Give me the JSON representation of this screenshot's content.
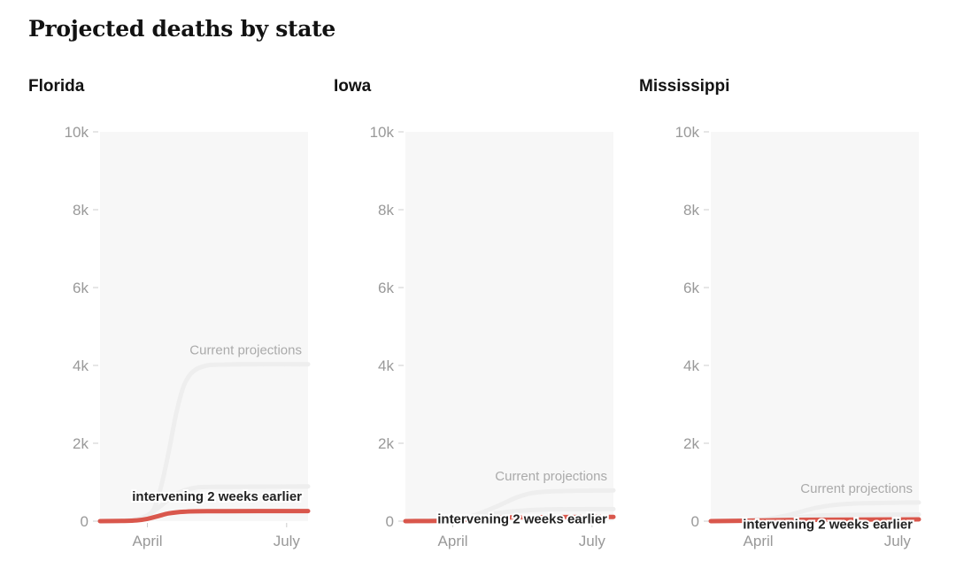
{
  "title": "Projected deaths by state",
  "colors": {
    "intervention": "#d9574c",
    "current": "#eeeeee",
    "plot_bg": "#f7f7f7",
    "tick_text": "#999999"
  },
  "chart_data": [
    {
      "type": "line",
      "title": "Florida",
      "ylim": [
        0,
        10000
      ],
      "yticks": [
        0,
        2000,
        4000,
        6000,
        8000,
        10000
      ],
      "ytick_labels": [
        "0",
        "2k",
        "4k",
        "6k",
        "8k",
        "10k"
      ],
      "xlim": [
        "2020-03-01",
        "2020-07-15"
      ],
      "xticks": [
        "2020-04-01",
        "2020-07-01"
      ],
      "xtick_labels": [
        "April",
        "July"
      ],
      "series": [
        {
          "name": "Current projections",
          "x": [
            "2020-03-01",
            "2020-03-10",
            "2020-03-20",
            "2020-03-30",
            "2020-04-05",
            "2020-04-10",
            "2020-04-15",
            "2020-04-20",
            "2020-04-25",
            "2020-05-01",
            "2020-05-10",
            "2020-05-20",
            "2020-06-01",
            "2020-07-15"
          ],
          "y": [
            0,
            5,
            20,
            100,
            300,
            900,
            1800,
            2800,
            3500,
            3850,
            4000,
            4020,
            4030,
            4030
          ]
        },
        {
          "x": [
            "2020-03-01",
            "2020-03-15",
            "2020-03-25",
            "2020-04-01",
            "2020-04-10",
            "2020-04-20",
            "2020-05-01",
            "2020-05-15",
            "2020-07-15"
          ],
          "y": [
            0,
            10,
            50,
            150,
            400,
            700,
            850,
            880,
            890
          ]
        },
        {
          "name": "intervening 2 weeks earlier",
          "x": [
            "2020-03-01",
            "2020-03-15",
            "2020-03-25",
            "2020-04-01",
            "2020-04-08",
            "2020-04-15",
            "2020-04-25",
            "2020-05-10",
            "2020-07-15"
          ],
          "y": [
            0,
            5,
            20,
            60,
            130,
            200,
            240,
            255,
            260
          ]
        }
      ]
    },
    {
      "type": "line",
      "title": "Iowa",
      "ylim": [
        0,
        10000
      ],
      "yticks": [
        0,
        2000,
        4000,
        6000,
        8000,
        10000
      ],
      "ytick_labels": [
        "0",
        "2k",
        "4k",
        "6k",
        "8k",
        "10k"
      ],
      "xlim": [
        "2020-03-01",
        "2020-07-15"
      ],
      "xticks": [
        "2020-04-01",
        "2020-07-01"
      ],
      "xtick_labels": [
        "April",
        "July"
      ],
      "series": [
        {
          "name": "Current projections",
          "x": [
            "2020-03-01",
            "2020-04-01",
            "2020-04-15",
            "2020-05-01",
            "2020-05-15",
            "2020-06-01",
            "2020-07-15"
          ],
          "y": [
            0,
            40,
            150,
            400,
            640,
            760,
            790
          ]
        },
        {
          "x": [
            "2020-03-01",
            "2020-04-01",
            "2020-04-20",
            "2020-05-10",
            "2020-06-01",
            "2020-07-15"
          ],
          "y": [
            0,
            30,
            150,
            250,
            300,
            310
          ]
        },
        {
          "name": "intervening 2 weeks earlier",
          "x": [
            "2020-03-01",
            "2020-03-25",
            "2020-04-10",
            "2020-04-25",
            "2020-05-15",
            "2020-07-15"
          ],
          "y": [
            0,
            10,
            40,
            80,
            100,
            110
          ]
        }
      ]
    },
    {
      "type": "line",
      "title": "Mississippi",
      "ylim": [
        0,
        10000
      ],
      "yticks": [
        0,
        2000,
        4000,
        6000,
        8000,
        10000
      ],
      "ytick_labels": [
        "0",
        "2k",
        "4k",
        "6k",
        "8k",
        "10k"
      ],
      "xlim": [
        "2020-03-01",
        "2020-07-15"
      ],
      "xticks": [
        "2020-04-01",
        "2020-07-01"
      ],
      "xtick_labels": [
        "April",
        "July"
      ],
      "series": [
        {
          "name": "Current projections",
          "x": [
            "2020-03-01",
            "2020-04-01",
            "2020-04-20",
            "2020-05-10",
            "2020-06-01",
            "2020-07-15"
          ],
          "y": [
            0,
            30,
            150,
            350,
            450,
            480
          ]
        },
        {
          "x": [
            "2020-03-01",
            "2020-04-15",
            "2020-05-15",
            "2020-07-15"
          ],
          "y": [
            0,
            60,
            150,
            170
          ]
        },
        {
          "name": "intervening 2 weeks earlier",
          "x": [
            "2020-03-01",
            "2020-04-01",
            "2020-05-01",
            "2020-07-15"
          ],
          "y": [
            0,
            15,
            35,
            45
          ]
        }
      ]
    }
  ]
}
